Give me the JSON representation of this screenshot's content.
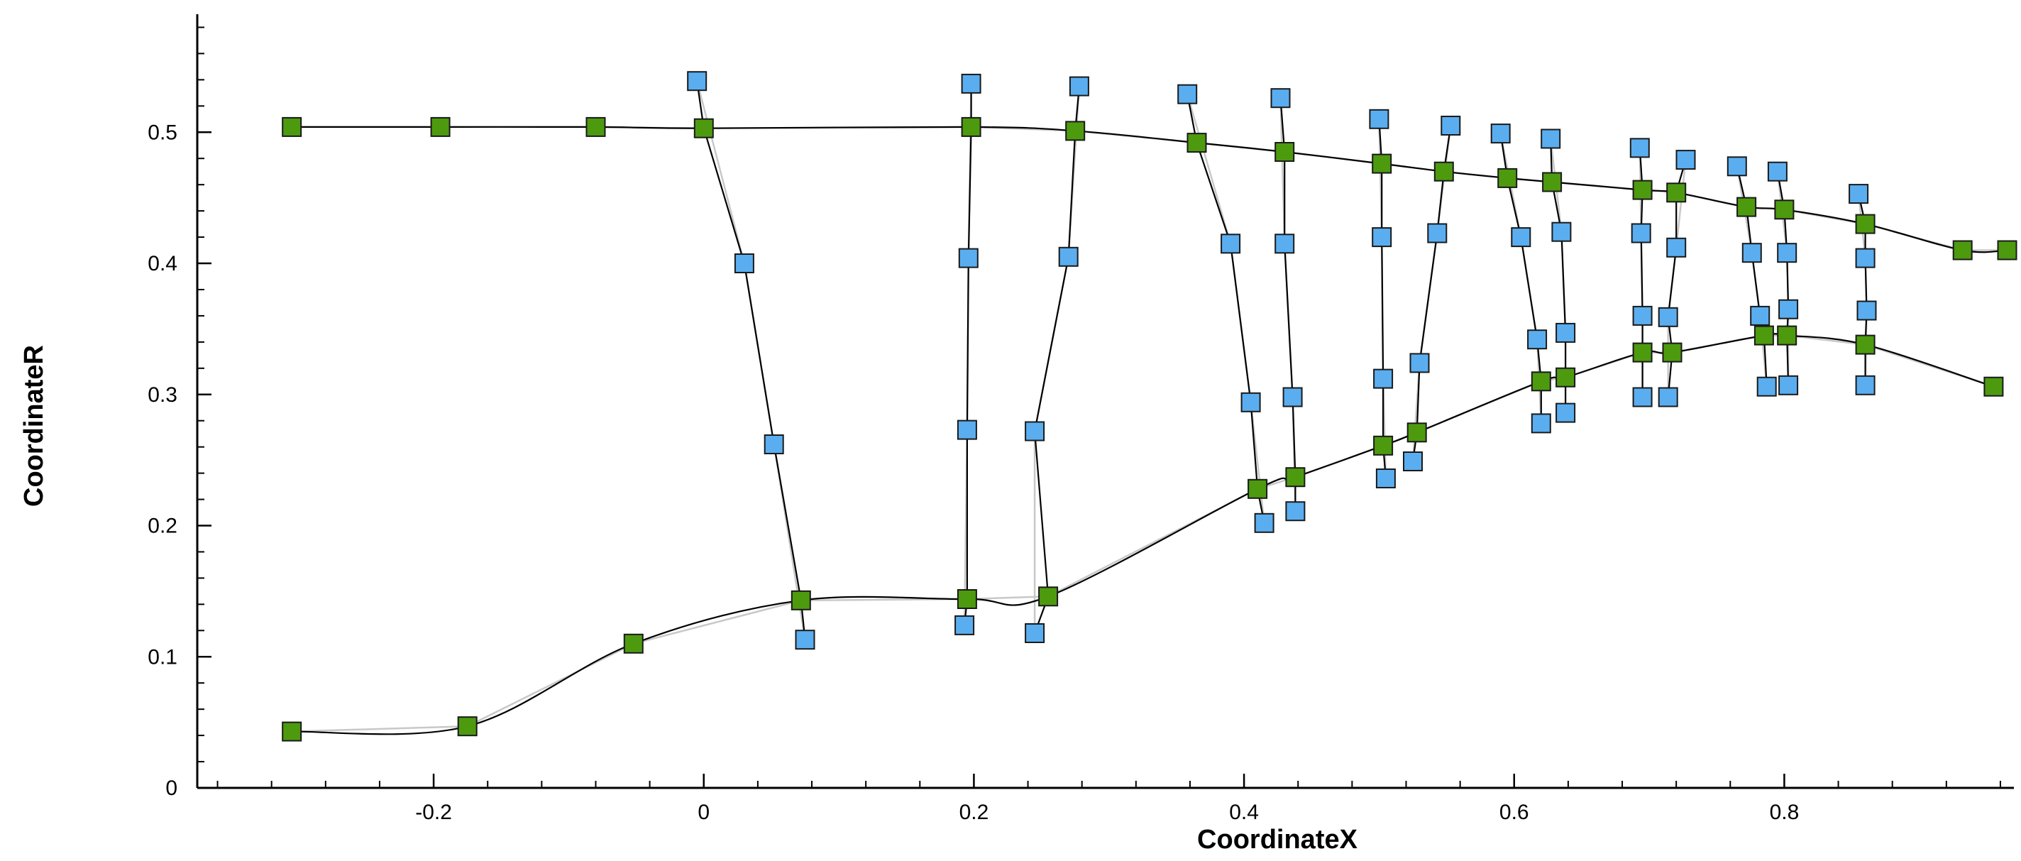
{
  "chart_data": {
    "type": "scatter",
    "title": "",
    "xlabel": "CoordinateX",
    "ylabel": "CoordinateR",
    "xlim": [
      -0.375,
      0.97
    ],
    "ylim": [
      0,
      0.59
    ],
    "xticks": [
      -0.2,
      0,
      0.2,
      0.4,
      0.6,
      0.8
    ],
    "xtick_labels": [
      "-0.2",
      "0",
      "0.2",
      "0.4",
      "0.6",
      "0.8"
    ],
    "yticks": [
      0,
      0.1,
      0.2,
      0.3,
      0.4,
      0.5
    ],
    "ytick_labels": [
      "0",
      "0.1",
      "0.2",
      "0.3",
      "0.4",
      "0.5"
    ],
    "grid": false,
    "legend": "none",
    "colors": {
      "green_marker": "#4d9a0f",
      "blue_marker": "#5aaef0",
      "line": "#000000",
      "secondary_line": "#c8c8c8"
    },
    "series": [
      {
        "role": "hub-outer",
        "marker": "green-square",
        "points": [
          [
            -0.305,
            0.504
          ],
          [
            -0.195,
            0.504
          ],
          [
            -0.08,
            0.504
          ],
          [
            0.0,
            0.503
          ],
          [
            0.198,
            0.504
          ],
          [
            0.275,
            0.501
          ],
          [
            0.365,
            0.492
          ],
          [
            0.43,
            0.485
          ],
          [
            0.502,
            0.476
          ],
          [
            0.548,
            0.47
          ],
          [
            0.595,
            0.465
          ],
          [
            0.628,
            0.462
          ],
          [
            0.695,
            0.456
          ],
          [
            0.72,
            0.454
          ],
          [
            0.772,
            0.443
          ],
          [
            0.8,
            0.441
          ],
          [
            0.86,
            0.43
          ],
          [
            0.932,
            0.41
          ],
          [
            0.965,
            0.41
          ]
        ]
      },
      {
        "role": "hub-inner",
        "marker": "green-square",
        "points": [
          [
            -0.305,
            0.043
          ],
          [
            -0.175,
            0.047
          ],
          [
            -0.052,
            0.11
          ],
          [
            0.072,
            0.143
          ],
          [
            0.195,
            0.144
          ],
          [
            0.255,
            0.146
          ],
          [
            0.41,
            0.228
          ],
          [
            0.438,
            0.237
          ],
          [
            0.503,
            0.261
          ],
          [
            0.528,
            0.271
          ],
          [
            0.62,
            0.31
          ],
          [
            0.638,
            0.313
          ],
          [
            0.695,
            0.332
          ],
          [
            0.717,
            0.332
          ],
          [
            0.785,
            0.345
          ],
          [
            0.802,
            0.345
          ],
          [
            0.86,
            0.338
          ],
          [
            0.955,
            0.306
          ]
        ]
      },
      {
        "role": "station-1",
        "marker": "blue-square",
        "points": [
          [
            -0.005,
            0.539
          ],
          [
            0.03,
            0.4
          ],
          [
            0.052,
            0.262
          ],
          [
            0.075,
            0.113
          ]
        ]
      },
      {
        "role": "station-2",
        "marker": "blue-square",
        "points": [
          [
            0.198,
            0.537
          ],
          [
            0.196,
            0.404
          ],
          [
            0.195,
            0.273
          ],
          [
            0.193,
            0.124
          ]
        ]
      },
      {
        "role": "station-3",
        "marker": "blue-square",
        "points": [
          [
            0.278,
            0.535
          ],
          [
            0.27,
            0.405
          ],
          [
            0.245,
            0.272
          ],
          [
            0.245,
            0.118
          ]
        ]
      },
      {
        "role": "station-4",
        "marker": "blue-square",
        "points": [
          [
            0.358,
            0.529
          ],
          [
            0.39,
            0.415
          ],
          [
            0.405,
            0.294
          ],
          [
            0.415,
            0.202
          ]
        ]
      },
      {
        "role": "station-5",
        "marker": "blue-square",
        "points": [
          [
            0.427,
            0.526
          ],
          [
            0.43,
            0.415
          ],
          [
            0.436,
            0.298
          ],
          [
            0.438,
            0.211
          ]
        ]
      },
      {
        "role": "station-6",
        "marker": "blue-square",
        "points": [
          [
            0.5,
            0.51
          ],
          [
            0.502,
            0.42
          ],
          [
            0.503,
            0.312
          ],
          [
            0.505,
            0.236
          ]
        ]
      },
      {
        "role": "station-7",
        "marker": "blue-square",
        "points": [
          [
            0.553,
            0.505
          ],
          [
            0.543,
            0.423
          ],
          [
            0.53,
            0.324
          ],
          [
            0.525,
            0.249
          ]
        ]
      },
      {
        "role": "station-8",
        "marker": "blue-square",
        "points": [
          [
            0.59,
            0.499
          ],
          [
            0.605,
            0.42
          ],
          [
            0.617,
            0.342
          ],
          [
            0.62,
            0.278
          ]
        ]
      },
      {
        "role": "station-9",
        "marker": "blue-square",
        "points": [
          [
            0.627,
            0.495
          ],
          [
            0.635,
            0.424
          ],
          [
            0.638,
            0.347
          ],
          [
            0.638,
            0.286
          ]
        ]
      },
      {
        "role": "station-10",
        "marker": "blue-square",
        "points": [
          [
            0.693,
            0.488
          ],
          [
            0.694,
            0.423
          ],
          [
            0.695,
            0.36
          ],
          [
            0.695,
            0.298
          ]
        ]
      },
      {
        "role": "station-11",
        "marker": "blue-square",
        "points": [
          [
            0.727,
            0.479
          ],
          [
            0.72,
            0.412
          ],
          [
            0.714,
            0.359
          ],
          [
            0.714,
            0.298
          ]
        ]
      },
      {
        "role": "station-12",
        "marker": "blue-square",
        "points": [
          [
            0.765,
            0.474
          ],
          [
            0.776,
            0.408
          ],
          [
            0.782,
            0.36
          ],
          [
            0.787,
            0.306
          ]
        ]
      },
      {
        "role": "station-13",
        "marker": "blue-square",
        "points": [
          [
            0.795,
            0.47
          ],
          [
            0.802,
            0.408
          ],
          [
            0.803,
            0.365
          ],
          [
            0.803,
            0.307
          ]
        ]
      },
      {
        "role": "station-14",
        "marker": "blue-square",
        "points": [
          [
            0.855,
            0.453
          ],
          [
            0.86,
            0.404
          ],
          [
            0.861,
            0.364
          ],
          [
            0.86,
            0.307
          ]
        ]
      }
    ]
  }
}
